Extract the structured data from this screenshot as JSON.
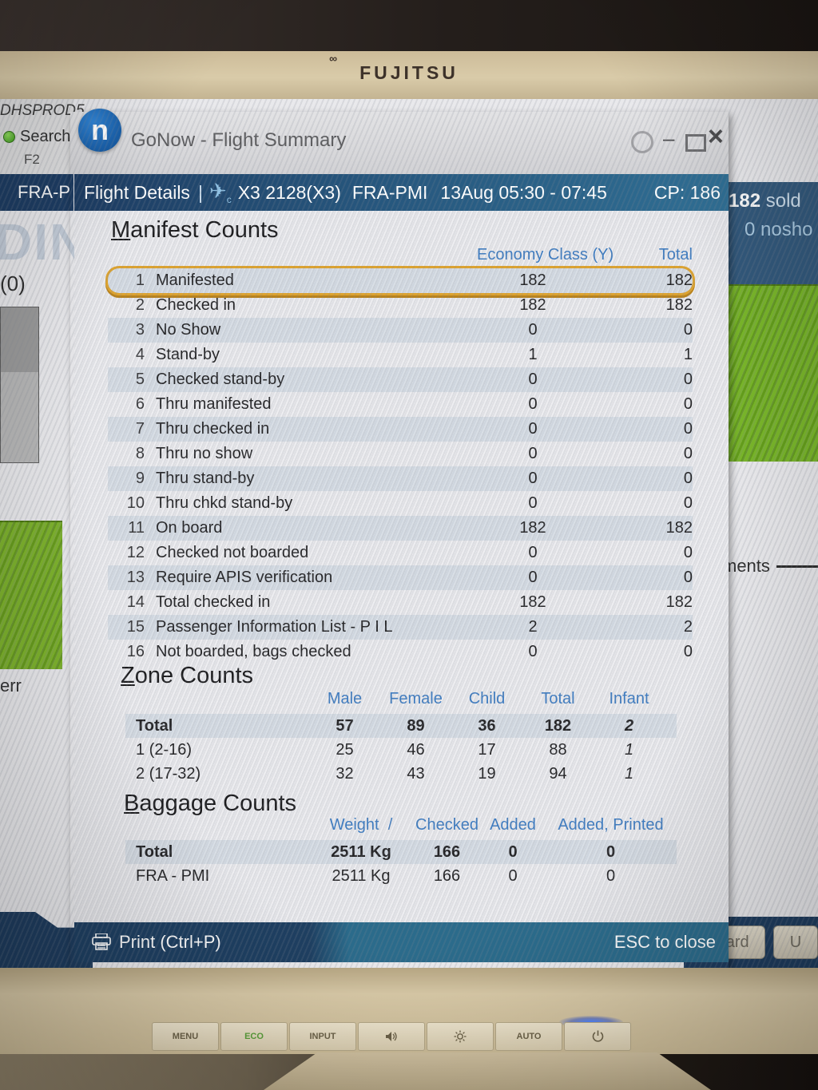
{
  "monitor": {
    "brand": "FUJITSU",
    "buttons": [
      {
        "label": "MENU",
        "icon": null
      },
      {
        "label": "ECO",
        "icon": null,
        "color": "green"
      },
      {
        "label": "INPUT",
        "icon": null
      },
      {
        "label": null,
        "icon": "speaker"
      },
      {
        "label": null,
        "icon": "brightness"
      },
      {
        "label": "AUTO",
        "icon": null
      },
      {
        "label": null,
        "icon": "power",
        "led": "blue"
      }
    ]
  },
  "background": {
    "host_label": "DHSPROD5",
    "search_label": "Search",
    "search_key": "F2",
    "left_bar_label": "FRA-P",
    "left_big_text": "DIN",
    "left_count": "(0)",
    "left_partial_text": "err",
    "right_panel": {
      "sold_count": "182",
      "sold_label": "sold",
      "noshow_count": "0",
      "noshow_label": "nosho"
    },
    "right_partial_text": "ments",
    "bottom_buttons": [
      {
        "label": "Board"
      },
      {
        "label": "U"
      }
    ]
  },
  "window": {
    "logo_letter": "n",
    "title": "GoNow - Flight Summary"
  },
  "dialog": {
    "header": {
      "tab_label": "Flight Details",
      "separator": "|",
      "flight_number": "X3 2128(X3)",
      "route": "FRA-PMI",
      "date_time": "13Aug 05:30 - 07:45",
      "cp_label": "CP: 186"
    },
    "manifest": {
      "title": "Manifest Counts",
      "columns": [
        "Economy Class (Y)",
        "Total"
      ],
      "rows": [
        {
          "num": "1",
          "label": "Manifested",
          "economy": "182",
          "total": "182",
          "highlighted": true
        },
        {
          "num": "2",
          "label": "Checked in",
          "economy": "182",
          "total": "182"
        },
        {
          "num": "3",
          "label": "No Show",
          "economy": "0",
          "total": "0"
        },
        {
          "num": "4",
          "label": "Stand-by",
          "economy": "1",
          "total": "1"
        },
        {
          "num": "5",
          "label": "Checked stand-by",
          "economy": "0",
          "total": "0"
        },
        {
          "num": "6",
          "label": "Thru manifested",
          "economy": "0",
          "total": "0"
        },
        {
          "num": "7",
          "label": "Thru checked in",
          "economy": "0",
          "total": "0"
        },
        {
          "num": "8",
          "label": "Thru no show",
          "economy": "0",
          "total": "0"
        },
        {
          "num": "9",
          "label": "Thru stand-by",
          "economy": "0",
          "total": "0"
        },
        {
          "num": "10",
          "label": "Thru chkd stand-by",
          "economy": "0",
          "total": "0"
        },
        {
          "num": "11",
          "label": "On board",
          "economy": "182",
          "total": "182"
        },
        {
          "num": "12",
          "label": "Checked not boarded",
          "economy": "0",
          "total": "0"
        },
        {
          "num": "13",
          "label": "Require APIS verification",
          "economy": "0",
          "total": "0"
        },
        {
          "num": "14",
          "label": "Total checked in",
          "economy": "182",
          "total": "182"
        },
        {
          "num": "15",
          "label": "Passenger Information List - P I L",
          "economy": "2",
          "total": "2"
        },
        {
          "num": "16",
          "label": "Not boarded, bags checked",
          "economy": "0",
          "total": "0"
        }
      ]
    },
    "zone": {
      "title": "Zone Counts",
      "columns": [
        "Male",
        "Female",
        "Child",
        "Total",
        "Infant"
      ],
      "rows": [
        {
          "label": "Total",
          "male": "57",
          "female": "89",
          "child": "36",
          "total": "182",
          "infant": "2",
          "bold": true
        },
        {
          "label": "1 (2-16)",
          "male": "25",
          "female": "46",
          "child": "17",
          "total": "88",
          "infant": "1"
        },
        {
          "label": "2 (17-32)",
          "male": "32",
          "female": "43",
          "child": "19",
          "total": "94",
          "infant": "1"
        }
      ]
    },
    "baggage": {
      "title": "Baggage Counts",
      "columns": [
        "Weight",
        "/",
        "Checked",
        "Added",
        "Added, Printed"
      ],
      "rows": [
        {
          "label": "Total",
          "weight": "2511 Kg",
          "checked": "166",
          "added": "0",
          "added_printed": "0",
          "bold": true
        },
        {
          "label": "FRA - PMI",
          "weight": "2511 Kg",
          "checked": "166",
          "added": "0",
          "added_printed": "0"
        }
      ]
    },
    "footer": {
      "print_label": "Print (Ctrl+P)",
      "esc_label": "ESC to close"
    }
  },
  "colors": {
    "header_navy": "#1d3c62",
    "header_steel": "#2f6e93",
    "accent_orange": "#dda32f",
    "column_header_blue": "#3f7cc0",
    "footer_teal": "#2b6b8b",
    "green_panel": "#7db22d",
    "logo_blue": "#1565b0"
  }
}
